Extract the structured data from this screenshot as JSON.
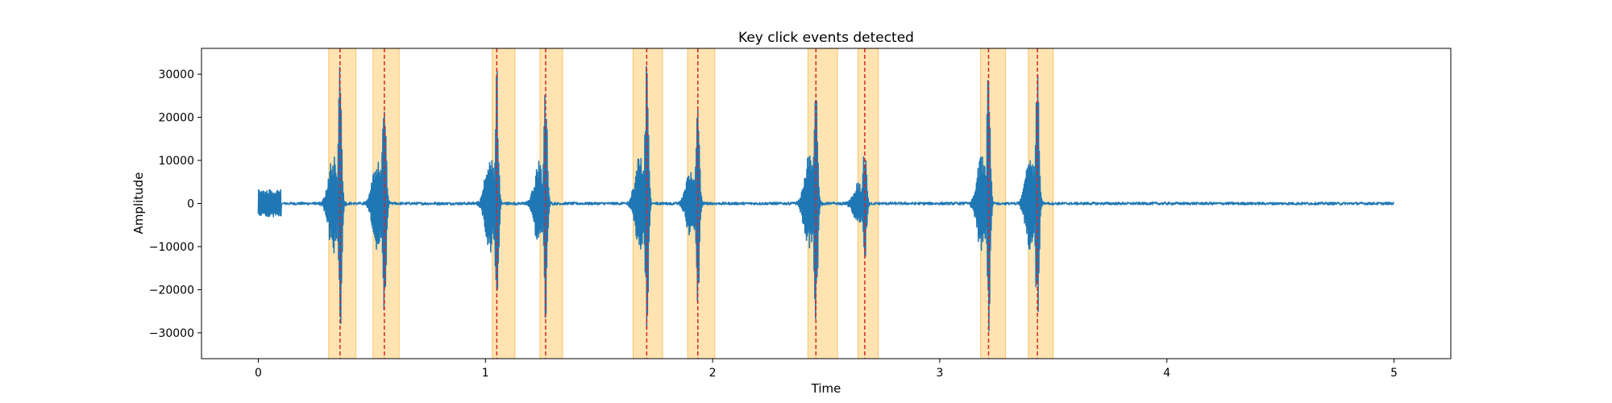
{
  "chart_data": {
    "type": "line",
    "title": "Key click events detected",
    "xlabel": "Time",
    "ylabel": "Amplitude",
    "xlim": [
      -0.25,
      5.25
    ],
    "ylim": [
      -36000,
      36000
    ],
    "xticks": [
      0,
      1,
      2,
      3,
      4,
      5
    ],
    "yticks": [
      -30000,
      -20000,
      -10000,
      0,
      10000,
      20000,
      30000
    ],
    "grid": false,
    "legend": "none",
    "colors": {
      "signal": "#1f77b4",
      "event_marker": "#d62728",
      "event_span_fill": "#ffd27f",
      "event_span_edge": "#f5a623"
    },
    "series": [
      {
        "style": "solid",
        "x_range": [
          0,
          5
        ],
        "baseline": 0,
        "noise_amplitude": 300,
        "initial_burst": {
          "x_range": [
            0,
            0.1
          ],
          "amplitude": 3200
        },
        "peak_amplitude": 33000
      }
    ],
    "events": [
      {
        "time": 0.36,
        "window": [
          0.31,
          0.43
        ],
        "peak": 33000
      },
      {
        "time": 0.555,
        "window": [
          0.505,
          0.62
        ],
        "peak": 32000
      },
      {
        "time": 1.05,
        "window": [
          1.03,
          1.13
        ],
        "peak": 33000
      },
      {
        "time": 1.265,
        "window": [
          1.24,
          1.34
        ],
        "peak": 28000
      },
      {
        "time": 1.71,
        "window": [
          1.65,
          1.78
        ],
        "peak": 33000
      },
      {
        "time": 1.935,
        "window": [
          1.89,
          2.01
        ],
        "peak": 25000
      },
      {
        "time": 2.455,
        "window": [
          2.42,
          2.55
        ],
        "peak": 33000
      },
      {
        "time": 2.67,
        "window": [
          2.64,
          2.73
        ],
        "peak": 14000
      },
      {
        "time": 3.215,
        "window": [
          3.18,
          3.29
        ],
        "peak": 33000
      },
      {
        "time": 3.43,
        "window": [
          3.39,
          3.5
        ],
        "peak": 33000
      }
    ]
  }
}
